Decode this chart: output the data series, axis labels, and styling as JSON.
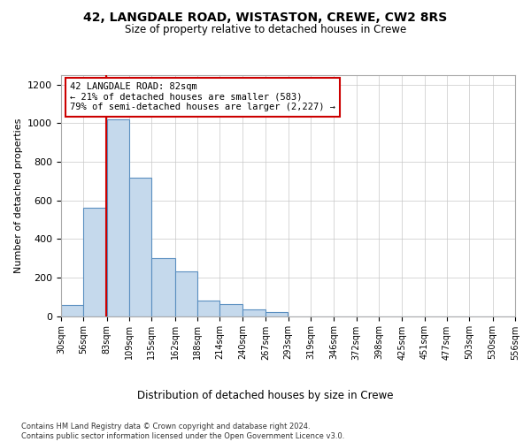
{
  "title1": "42, LANGDALE ROAD, WISTASTON, CREWE, CW2 8RS",
  "title2": "Size of property relative to detached houses in Crewe",
  "xlabel": "Distribution of detached houses by size in Crewe",
  "ylabel": "Number of detached properties",
  "bar_color": "#c5d9ec",
  "bar_edge_color": "#5a8fc0",
  "annotation_line_color": "#cc0000",
  "annotation_box_color": "#cc0000",
  "background_color": "#ffffff",
  "grid_color": "#c8c8c8",
  "footer": "Contains HM Land Registry data © Crown copyright and database right 2024.\nContains public sector information licensed under the Open Government Licence v3.0.",
  "bins": [
    30,
    56,
    83,
    109,
    135,
    162,
    188,
    214,
    240,
    267,
    293,
    319,
    346,
    372,
    398,
    425,
    451,
    477,
    503,
    530,
    556
  ],
  "values": [
    57,
    560,
    1020,
    720,
    300,
    230,
    80,
    60,
    35,
    20,
    0,
    0,
    0,
    0,
    0,
    0,
    0,
    0,
    0,
    0
  ],
  "property_size": 82,
  "annotation_line1": "42 LANGDALE ROAD: 82sqm",
  "annotation_line2": "← 21% of detached houses are smaller (583)",
  "annotation_line3": "79% of semi-detached houses are larger (2,227) →",
  "ylim": [
    0,
    1250
  ],
  "yticks": [
    0,
    200,
    400,
    600,
    800,
    1000,
    1200
  ]
}
